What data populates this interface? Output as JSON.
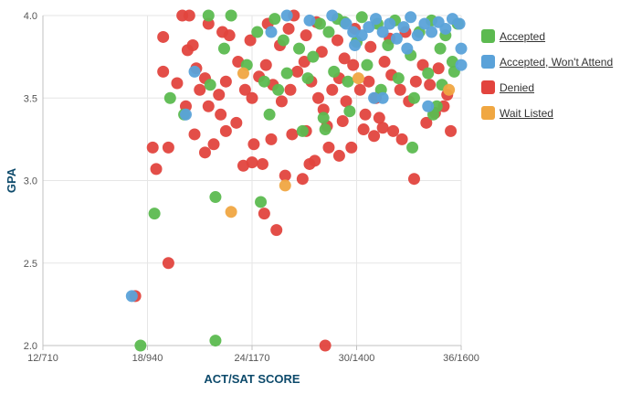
{
  "chart_data": {
    "type": "scatter",
    "xlabel": "ACT/SAT SCORE",
    "ylabel": "GPA",
    "xlim": [
      12,
      36
    ],
    "ylim": [
      2.0,
      4.0
    ],
    "x_ticks": [
      {
        "value": 12,
        "label": "12/710"
      },
      {
        "value": 18,
        "label": "18/940"
      },
      {
        "value": 24,
        "label": "24/1170"
      },
      {
        "value": 30,
        "label": "30/1400"
      },
      {
        "value": 36,
        "label": "36/1600"
      }
    ],
    "y_ticks": [
      {
        "value": 2.0,
        "label": "2.0"
      },
      {
        "value": 2.5,
        "label": "2.5"
      },
      {
        "value": 3.0,
        "label": "3.0"
      },
      {
        "value": 3.5,
        "label": "3.5"
      },
      {
        "value": 4.0,
        "label": "4.0"
      }
    ],
    "grid": true,
    "legend_position": "right",
    "series": [
      {
        "name": "Denied",
        "color": "#e2443e",
        "points": [
          [
            17.3,
            2.3
          ],
          [
            19.2,
            2.5
          ],
          [
            18.5,
            3.07
          ],
          [
            18.3,
            3.2
          ],
          [
            19.2,
            3.2
          ],
          [
            20.7,
            3.28
          ],
          [
            21.3,
            3.17
          ],
          [
            21.8,
            3.22
          ],
          [
            20.2,
            3.45
          ],
          [
            21.5,
            3.45
          ],
          [
            21.0,
            3.55
          ],
          [
            22.2,
            3.4
          ],
          [
            22.5,
            3.3
          ],
          [
            23.5,
            3.09
          ],
          [
            24.0,
            3.11
          ],
          [
            24.6,
            3.1
          ],
          [
            24.7,
            2.8
          ],
          [
            25.4,
            2.7
          ],
          [
            25.9,
            3.03
          ],
          [
            26.9,
            3.01
          ],
          [
            27.3,
            3.1
          ],
          [
            27.6,
            3.12
          ],
          [
            28.4,
            3.2
          ],
          [
            28.2,
            2.0
          ],
          [
            29.0,
            3.15
          ],
          [
            29.7,
            3.2
          ],
          [
            30.4,
            3.31
          ],
          [
            31.0,
            3.27
          ],
          [
            31.5,
            3.32
          ],
          [
            32.1,
            3.3
          ],
          [
            32.6,
            3.25
          ],
          [
            33.3,
            3.01
          ],
          [
            34.0,
            3.35
          ],
          [
            34.5,
            3.41
          ],
          [
            35.4,
            3.3
          ],
          [
            35.0,
            3.45
          ],
          [
            18.9,
            3.66
          ],
          [
            18.9,
            3.87
          ],
          [
            20.3,
            3.79
          ],
          [
            20.6,
            3.82
          ],
          [
            20.0,
            4.0
          ],
          [
            20.4,
            4.0
          ],
          [
            21.5,
            3.95
          ],
          [
            22.3,
            3.9
          ],
          [
            22.7,
            3.88
          ],
          [
            23.2,
            3.72
          ],
          [
            22.5,
            3.6
          ],
          [
            23.6,
            3.55
          ],
          [
            24.0,
            3.5
          ],
          [
            24.4,
            3.63
          ],
          [
            24.8,
            3.7
          ],
          [
            25.2,
            3.58
          ],
          [
            25.7,
            3.48
          ],
          [
            26.2,
            3.55
          ],
          [
            26.6,
            3.66
          ],
          [
            27.0,
            3.72
          ],
          [
            27.4,
            3.6
          ],
          [
            27.8,
            3.5
          ],
          [
            28.1,
            3.43
          ],
          [
            28.6,
            3.55
          ],
          [
            29.0,
            3.62
          ],
          [
            29.4,
            3.48
          ],
          [
            29.8,
            3.7
          ],
          [
            30.2,
            3.55
          ],
          [
            30.7,
            3.6
          ],
          [
            31.1,
            3.5
          ],
          [
            31.6,
            3.72
          ],
          [
            32.0,
            3.64
          ],
          [
            32.5,
            3.55
          ],
          [
            33.0,
            3.48
          ],
          [
            33.4,
            3.6
          ],
          [
            33.8,
            3.7
          ],
          [
            34.2,
            3.58
          ],
          [
            34.7,
            3.68
          ],
          [
            35.2,
            3.52
          ],
          [
            25.6,
            3.82
          ],
          [
            26.1,
            3.92
          ],
          [
            27.1,
            3.88
          ],
          [
            28.0,
            3.78
          ],
          [
            28.9,
            3.85
          ],
          [
            29.9,
            3.92
          ],
          [
            30.8,
            3.81
          ],
          [
            31.9,
            3.86
          ],
          [
            32.8,
            3.9
          ],
          [
            23.9,
            3.85
          ],
          [
            24.9,
            3.95
          ],
          [
            26.4,
            4.0
          ],
          [
            27.7,
            3.96
          ],
          [
            29.3,
            3.74
          ],
          [
            30.5,
            3.4
          ],
          [
            31.3,
            3.38
          ],
          [
            29.2,
            3.36
          ],
          [
            28.3,
            3.33
          ],
          [
            27.1,
            3.3
          ],
          [
            26.3,
            3.28
          ],
          [
            25.1,
            3.25
          ],
          [
            24.1,
            3.22
          ],
          [
            23.1,
            3.35
          ],
          [
            22.1,
            3.52
          ],
          [
            21.3,
            3.62
          ],
          [
            20.8,
            3.68
          ],
          [
            19.7,
            3.59
          ]
        ]
      },
      {
        "name": "Accepted",
        "color": "#5cba50",
        "points": [
          [
            17.6,
            2.0
          ],
          [
            18.4,
            2.8
          ],
          [
            21.9,
            2.03
          ],
          [
            21.9,
            2.9
          ],
          [
            24.5,
            2.87
          ],
          [
            26.9,
            3.3
          ],
          [
            19.3,
            3.5
          ],
          [
            20.1,
            3.4
          ],
          [
            21.6,
            3.58
          ],
          [
            25.0,
            3.4
          ],
          [
            28.1,
            3.38
          ],
          [
            28.2,
            3.31
          ],
          [
            33.2,
            3.2
          ],
          [
            34.4,
            3.4
          ],
          [
            34.6,
            3.45
          ],
          [
            29.6,
            3.42
          ],
          [
            21.5,
            4.0
          ],
          [
            22.8,
            4.0
          ],
          [
            24.3,
            3.9
          ],
          [
            25.3,
            3.98
          ],
          [
            25.8,
            3.85
          ],
          [
            26.7,
            3.8
          ],
          [
            27.5,
            3.75
          ],
          [
            28.4,
            3.9
          ],
          [
            29.3,
            3.96
          ],
          [
            30.0,
            3.84
          ],
          [
            30.6,
            3.7
          ],
          [
            31.2,
            3.95
          ],
          [
            31.8,
            3.82
          ],
          [
            32.4,
            3.62
          ],
          [
            33.1,
            3.76
          ],
          [
            33.6,
            3.9
          ],
          [
            34.1,
            3.65
          ],
          [
            34.8,
            3.8
          ],
          [
            35.5,
            3.72
          ],
          [
            35.8,
            3.95
          ],
          [
            26.0,
            3.65
          ],
          [
            27.2,
            3.62
          ],
          [
            28.7,
            3.66
          ],
          [
            29.5,
            3.6
          ],
          [
            31.4,
            3.55
          ],
          [
            33.3,
            3.5
          ],
          [
            34.9,
            3.58
          ],
          [
            22.4,
            3.8
          ],
          [
            23.7,
            3.7
          ],
          [
            24.7,
            3.6
          ],
          [
            25.5,
            3.55
          ],
          [
            27.9,
            3.95
          ],
          [
            28.9,
            3.98
          ],
          [
            30.3,
            3.99
          ],
          [
            32.2,
            3.97
          ],
          [
            34.3,
            3.97
          ],
          [
            35.1,
            3.88
          ],
          [
            35.6,
            3.66
          ]
        ]
      },
      {
        "name": "Accepted, Won't Attend",
        "color": "#5aa2d9",
        "points": [
          [
            17.1,
            2.3
          ],
          [
            20.2,
            3.4
          ],
          [
            20.7,
            3.66
          ],
          [
            25.1,
            3.9
          ],
          [
            26.0,
            4.0
          ],
          [
            27.3,
            3.97
          ],
          [
            28.6,
            4.0
          ],
          [
            29.4,
            3.95
          ],
          [
            29.8,
            3.9
          ],
          [
            30.3,
            3.88
          ],
          [
            30.7,
            3.93
          ],
          [
            31.1,
            3.98
          ],
          [
            31.5,
            3.9
          ],
          [
            31.9,
            3.95
          ],
          [
            32.3,
            3.86
          ],
          [
            32.7,
            3.93
          ],
          [
            33.1,
            3.99
          ],
          [
            33.5,
            3.88
          ],
          [
            33.9,
            3.95
          ],
          [
            34.3,
            3.9
          ],
          [
            34.7,
            3.96
          ],
          [
            35.1,
            3.92
          ],
          [
            35.5,
            3.98
          ],
          [
            35.9,
            3.95
          ],
          [
            36.0,
            3.8
          ],
          [
            36.0,
            3.7
          ],
          [
            31.0,
            3.5
          ],
          [
            31.5,
            3.5
          ],
          [
            34.1,
            3.45
          ],
          [
            29.9,
            3.82
          ],
          [
            32.9,
            3.8
          ]
        ]
      },
      {
        "name": "Wait Listed",
        "color": "#f0a742",
        "points": [
          [
            22.8,
            2.81
          ],
          [
            25.9,
            2.97
          ],
          [
            23.5,
            3.65
          ],
          [
            30.1,
            3.62
          ],
          [
            35.3,
            3.55
          ]
        ]
      }
    ]
  },
  "legend": [
    {
      "label": "Accepted",
      "color": "#5cba50"
    },
    {
      "label": "Accepted, Won't Attend",
      "color": "#5aa2d9"
    },
    {
      "label": "Denied",
      "color": "#e2443e"
    },
    {
      "label": "Wait Listed",
      "color": "#f0a742"
    }
  ]
}
